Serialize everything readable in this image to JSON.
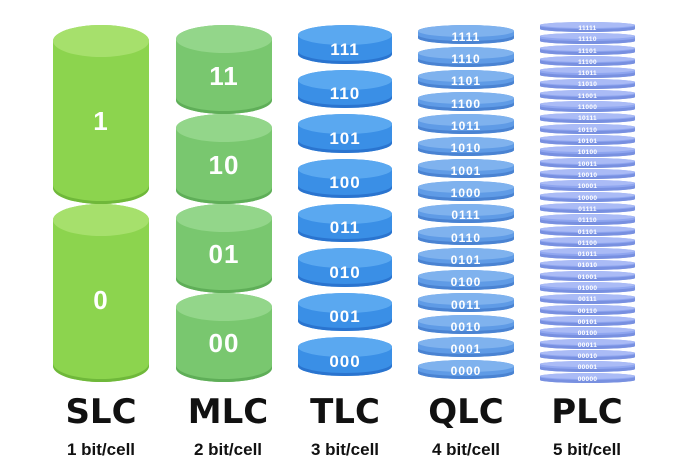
{
  "columns": [
    {
      "id": "slc",
      "name": "SLC",
      "bits": "1 bit/cell",
      "bit_width": 1,
      "labels": [
        "1",
        "0"
      ],
      "theme": "green-light"
    },
    {
      "id": "mlc",
      "name": "MLC",
      "bits": "2 bit/cell",
      "bit_width": 2,
      "labels": [
        "11",
        "10",
        "01",
        "00"
      ],
      "theme": "green-mid"
    },
    {
      "id": "tlc",
      "name": "TLC",
      "bits": "3 bit/cell",
      "bit_width": 3,
      "labels": [
        "111",
        "110",
        "101",
        "100",
        "011",
        "010",
        "001",
        "000"
      ],
      "theme": "blue-bright"
    },
    {
      "id": "qlc",
      "name": "QLC",
      "bits": "4 bit/cell",
      "bit_width": 4,
      "labels": [
        "1111",
        "1110",
        "1101",
        "1100",
        "1011",
        "1010",
        "1001",
        "1000",
        "0111",
        "0110",
        "0101",
        "0100",
        "0011",
        "0010",
        "0001",
        "0000"
      ],
      "theme": "blue-mid"
    },
    {
      "id": "plc",
      "name": "PLC",
      "bits": "5 bit/cell",
      "bit_width": 5,
      "labels": [
        "11111",
        "11110",
        "11101",
        "11100",
        "11011",
        "11010",
        "11001",
        "11000",
        "10111",
        "10110",
        "10101",
        "10100",
        "10011",
        "10010",
        "10001",
        "10000",
        "01111",
        "01110",
        "01101",
        "01100",
        "01011",
        "01010",
        "01001",
        "01000",
        "00111",
        "00110",
        "00101",
        "00100",
        "00011",
        "00010",
        "00001",
        "00000"
      ],
      "theme": "blue-pale"
    }
  ],
  "colors": {
    "green-light": {
      "body": "#8cd44e",
      "edge": "#6fb83a",
      "top": "#a6e06c"
    },
    "green-mid": {
      "body": "#79c76f",
      "edge": "#5fae58",
      "top": "#93d68a"
    },
    "blue-bright": {
      "body": "#3a8fe6",
      "edge": "#2a74cf",
      "top": "#5aa8f0"
    },
    "blue-mid": {
      "body": "#5f9be6",
      "edge": "#4a83d2",
      "top": "#7fb2ee"
    },
    "blue-pale": {
      "body": "#8fa6f0",
      "edge": "#7890e0",
      "top": "#aabbf6"
    }
  }
}
